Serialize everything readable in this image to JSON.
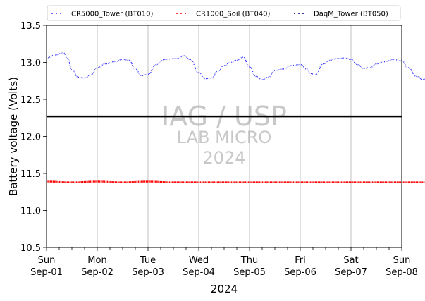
{
  "chart_data": {
    "type": "line",
    "title": "",
    "xlabel": "2024",
    "ylabel": "Battery voltage (Volts)",
    "ylim": [
      10.5,
      13.5
    ],
    "yticks": [
      "10.5",
      "11.0",
      "11.5",
      "12.0",
      "12.5",
      "13.0",
      "13.5"
    ],
    "xlim": [
      "2024-09-01",
      "2024-09-08"
    ],
    "xticks": [
      {
        "day": "Sun",
        "date": "Sep-01"
      },
      {
        "day": "Mon",
        "date": "Sep-02"
      },
      {
        "day": "Tue",
        "date": "Sep-03"
      },
      {
        "day": "Wed",
        "date": "Sep-04"
      },
      {
        "day": "Thu",
        "date": "Sep-05"
      },
      {
        "day": "Fri",
        "date": "Sep-06"
      },
      {
        "day": "Sat",
        "date": "Sep-07"
      },
      {
        "day": "Sun",
        "date": "Sep-08"
      }
    ],
    "grid": "vertical at day ticks",
    "legend_position": "top, above plot",
    "reference_line": {
      "y": 12.27,
      "color": "#000000"
    },
    "series": [
      {
        "name": "CR5000_Tower (BT010)",
        "color": "#3333ff",
        "style": "dotted",
        "points": [
          [
            "2024-09-01 00:00",
            13.06
          ],
          [
            "2024-09-01 04:00",
            13.1
          ],
          [
            "2024-09-01 08:00",
            13.13
          ],
          [
            "2024-09-01 10:00",
            13.05
          ],
          [
            "2024-09-01 12:00",
            12.9
          ],
          [
            "2024-09-01 15:00",
            12.8
          ],
          [
            "2024-09-01 18:00",
            12.79
          ],
          [
            "2024-09-01 21:00",
            12.83
          ],
          [
            "2024-09-02 00:00",
            12.93
          ],
          [
            "2024-09-02 04:00",
            12.98
          ],
          [
            "2024-09-02 08:00",
            13.01
          ],
          [
            "2024-09-02 12:00",
            13.04
          ],
          [
            "2024-09-02 15:00",
            13.03
          ],
          [
            "2024-09-02 18:00",
            12.91
          ],
          [
            "2024-09-02 21:00",
            12.82
          ],
          [
            "2024-09-03 00:00",
            12.84
          ],
          [
            "2024-09-03 04:00",
            12.97
          ],
          [
            "2024-09-03 08:00",
            13.04
          ],
          [
            "2024-09-03 12:00",
            13.05
          ],
          [
            "2024-09-03 14:00",
            13.05
          ],
          [
            "2024-09-03 17:00",
            13.09
          ],
          [
            "2024-09-03 20:00",
            13.04
          ],
          [
            "2024-09-04 00:00",
            12.86
          ],
          [
            "2024-09-04 03:00",
            12.78
          ],
          [
            "2024-09-04 06:00",
            12.79
          ],
          [
            "2024-09-04 09:00",
            12.88
          ],
          [
            "2024-09-04 12:00",
            12.96
          ],
          [
            "2024-09-04 15:00",
            13.0
          ],
          [
            "2024-09-04 18:00",
            13.03
          ],
          [
            "2024-09-04 21:00",
            13.07
          ],
          [
            "2024-09-05 00:00",
            12.94
          ],
          [
            "2024-09-05 03:00",
            12.81
          ],
          [
            "2024-09-05 06:00",
            12.77
          ],
          [
            "2024-09-05 09:00",
            12.8
          ],
          [
            "2024-09-05 12:00",
            12.89
          ],
          [
            "2024-09-05 16:00",
            12.91
          ],
          [
            "2024-09-05 20:00",
            12.96
          ],
          [
            "2024-09-06 00:00",
            12.97
          ],
          [
            "2024-09-06 03:00",
            12.91
          ],
          [
            "2024-09-06 05:00",
            12.85
          ],
          [
            "2024-09-06 07:00",
            12.83
          ],
          [
            "2024-09-06 11:00",
            12.98
          ],
          [
            "2024-09-06 14:00",
            13.03
          ],
          [
            "2024-09-06 17:00",
            13.05
          ],
          [
            "2024-09-06 21:00",
            13.06
          ],
          [
            "2024-09-07 00:00",
            13.04
          ],
          [
            "2024-09-07 03:00",
            12.97
          ],
          [
            "2024-09-07 06:00",
            12.92
          ],
          [
            "2024-09-07 09:00",
            12.93
          ],
          [
            "2024-09-07 12:00",
            12.98
          ],
          [
            "2024-09-07 16:00",
            13.01
          ],
          [
            "2024-09-07 20:00",
            13.04
          ],
          [
            "2024-09-08 00:00",
            13.02
          ],
          [
            "2024-09-08 03:00",
            12.93
          ],
          [
            "2024-09-08 07:00",
            12.81
          ],
          [
            "2024-09-08 10:00",
            12.77
          ],
          [
            "2024-09-08 13:00",
            12.79
          ],
          [
            "2024-09-08 17:00",
            12.89
          ],
          [
            "2024-09-08 20:00",
            12.93
          ],
          [
            "2024-09-08 23:00",
            12.94
          ]
        ]
      },
      {
        "name": "CR1000_Soil (BT040)",
        "color": "#ff0000",
        "style": "dotted",
        "points": [
          [
            "2024-09-01 00:00",
            11.39
          ],
          [
            "2024-09-01 12:00",
            11.38
          ],
          [
            "2024-09-02 00:00",
            11.39
          ],
          [
            "2024-09-02 12:00",
            11.38
          ],
          [
            "2024-09-03 00:00",
            11.39
          ],
          [
            "2024-09-03 12:00",
            11.38
          ],
          [
            "2024-09-04 00:00",
            11.38
          ],
          [
            "2024-09-04 12:00",
            11.38
          ],
          [
            "2024-09-05 00:00",
            11.38
          ],
          [
            "2024-09-05 12:00",
            11.38
          ],
          [
            "2024-09-06 00:00",
            11.38
          ],
          [
            "2024-09-06 12:00",
            11.38
          ],
          [
            "2024-09-07 00:00",
            11.38
          ],
          [
            "2024-09-07 12:00",
            11.38
          ],
          [
            "2024-09-08 00:00",
            11.38
          ],
          [
            "2024-09-08 23:00",
            11.38
          ]
        ]
      },
      {
        "name": "DaqM_Tower (BT050)",
        "color": "#000080",
        "style": "dotted",
        "points": []
      }
    ],
    "watermark": [
      "IAG / USP",
      "LAB MICRO",
      "2024"
    ]
  }
}
